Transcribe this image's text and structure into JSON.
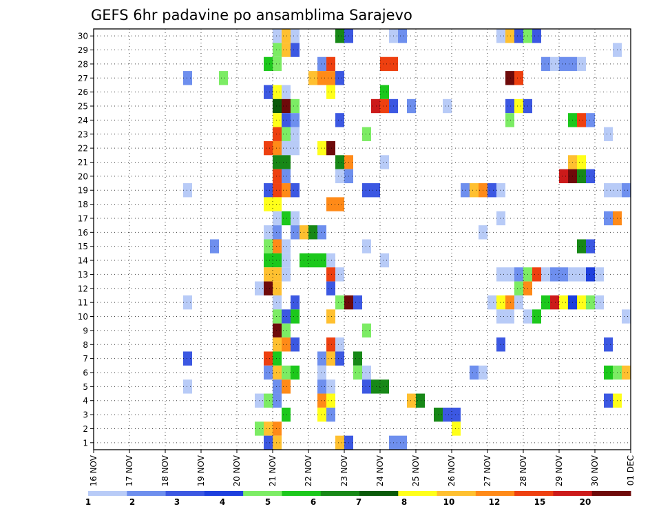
{
  "chart_data": {
    "type": "heatmap",
    "title": "GEFS 6hr padavine po ansamblima Sarajevo",
    "x_tick_labels": [
      "16 NOV",
      "17 NOV",
      "18 NOV",
      "19 NOV",
      "20 NOV",
      "21 NOV",
      "22 NOV",
      "23 NOV",
      "24 NOV",
      "25 NOV",
      "26 NOV",
      "27 NOV",
      "28 NOV",
      "29 NOV",
      "30 NOV",
      "01 DEC"
    ],
    "x_step_hours": 6,
    "y_tick_labels": [
      "1",
      "2",
      "3",
      "4",
      "5",
      "6",
      "7",
      "8",
      "9",
      "10",
      "11",
      "12",
      "13",
      "14",
      "15",
      "16",
      "17",
      "18",
      "19",
      "20",
      "21",
      "22",
      "23",
      "24",
      "25",
      "26",
      "27",
      "28",
      "29",
      "30"
    ],
    "colorbar": {
      "tick_labels": [
        "1",
        "2",
        "3",
        "4",
        "5",
        "6",
        "7",
        "8",
        "10",
        "12",
        "15",
        "20"
      ],
      "colors": [
        "#b8cbf7",
        "#6e8fee",
        "#3c58e2",
        "#1d3fde",
        "#7cec64",
        "#1cc81c",
        "#178817",
        "#0a5a0a",
        "#ffff1a",
        "#ffc030",
        "#ff8a18",
        "#ee4010",
        "#cc1a1a",
        "#6e0a0a"
      ]
    },
    "cells": [
      [
        30,
        [
          [
            20,
            0
          ],
          [
            21,
            9
          ],
          [
            22,
            0
          ],
          [
            27,
            6
          ],
          [
            28,
            2
          ],
          [
            33,
            0
          ],
          [
            34,
            1
          ],
          [
            45,
            0
          ],
          [
            46,
            9
          ],
          [
            47,
            2
          ],
          [
            48,
            4
          ],
          [
            49,
            2
          ]
        ]
      ],
      [
        29,
        [
          [
            20,
            4
          ],
          [
            21,
            9
          ],
          [
            22,
            2
          ],
          [
            58,
            0
          ]
        ]
      ],
      [
        28,
        [
          [
            19,
            5
          ],
          [
            20,
            4
          ],
          [
            25,
            1
          ],
          [
            26,
            11
          ],
          [
            32,
            11
          ],
          [
            33,
            11
          ],
          [
            50,
            1
          ],
          [
            51,
            0
          ],
          [
            52,
            1
          ],
          [
            53,
            1
          ],
          [
            54,
            0
          ]
        ]
      ],
      [
        27,
        [
          [
            10,
            1
          ],
          [
            14,
            4
          ],
          [
            24,
            9
          ],
          [
            25,
            10
          ],
          [
            26,
            10
          ],
          [
            27,
            2
          ],
          [
            46,
            13
          ],
          [
            47,
            11
          ]
        ]
      ],
      [
        26,
        [
          [
            19,
            2
          ],
          [
            20,
            8
          ],
          [
            21,
            0
          ],
          [
            26,
            8
          ],
          [
            32,
            5
          ]
        ]
      ],
      [
        25,
        [
          [
            20,
            7
          ],
          [
            21,
            13
          ],
          [
            22,
            4
          ],
          [
            31,
            12
          ],
          [
            32,
            11
          ],
          [
            33,
            2
          ],
          [
            35,
            1
          ],
          [
            39,
            0
          ],
          [
            46,
            2
          ],
          [
            47,
            8
          ],
          [
            48,
            2
          ]
        ]
      ],
      [
        24,
        [
          [
            20,
            8
          ],
          [
            21,
            2
          ],
          [
            22,
            1
          ],
          [
            27,
            2
          ],
          [
            46,
            4
          ],
          [
            53,
            5
          ],
          [
            54,
            11
          ],
          [
            55,
            1
          ]
        ]
      ],
      [
        23,
        [
          [
            20,
            11
          ],
          [
            21,
            4
          ],
          [
            22,
            0
          ],
          [
            30,
            4
          ],
          [
            57,
            0
          ]
        ]
      ],
      [
        22,
        [
          [
            19,
            11
          ],
          [
            20,
            10
          ],
          [
            21,
            0
          ],
          [
            22,
            0
          ],
          [
            25,
            8
          ],
          [
            26,
            13
          ]
        ]
      ],
      [
        21,
        [
          [
            20,
            6
          ],
          [
            21,
            6
          ],
          [
            27,
            6
          ],
          [
            28,
            10
          ],
          [
            32,
            0
          ],
          [
            53,
            9
          ],
          [
            54,
            8
          ]
        ]
      ],
      [
        20,
        [
          [
            20,
            11
          ],
          [
            21,
            1
          ],
          [
            27,
            0
          ],
          [
            28,
            1
          ],
          [
            52,
            12
          ],
          [
            53,
            13
          ],
          [
            54,
            6
          ],
          [
            55,
            2
          ]
        ]
      ],
      [
        19,
        [
          [
            10,
            0
          ],
          [
            19,
            2
          ],
          [
            20,
            11
          ],
          [
            21,
            10
          ],
          [
            22,
            2
          ],
          [
            30,
            2
          ],
          [
            31,
            2
          ],
          [
            41,
            1
          ],
          [
            42,
            9
          ],
          [
            43,
            10
          ],
          [
            44,
            2
          ],
          [
            45,
            0
          ],
          [
            57,
            0
          ],
          [
            58,
            0
          ],
          [
            59,
            1
          ]
        ]
      ],
      [
        18,
        [
          [
            19,
            8
          ],
          [
            20,
            8
          ],
          [
            26,
            10
          ],
          [
            27,
            10
          ]
        ]
      ],
      [
        17,
        [
          [
            20,
            0
          ],
          [
            21,
            5
          ],
          [
            22,
            0
          ],
          [
            45,
            0
          ],
          [
            57,
            1
          ],
          [
            58,
            10
          ]
        ]
      ],
      [
        16,
        [
          [
            19,
            0
          ],
          [
            20,
            1
          ],
          [
            22,
            1
          ],
          [
            23,
            9
          ],
          [
            24,
            6
          ],
          [
            25,
            1
          ],
          [
            43,
            0
          ]
        ]
      ],
      [
        15,
        [
          [
            13,
            1
          ],
          [
            19,
            4
          ],
          [
            20,
            10
          ],
          [
            21,
            0
          ],
          [
            30,
            0
          ],
          [
            54,
            6
          ],
          [
            55,
            2
          ]
        ]
      ],
      [
        14,
        [
          [
            19,
            5
          ],
          [
            20,
            5
          ],
          [
            21,
            0
          ],
          [
            23,
            5
          ],
          [
            24,
            5
          ],
          [
            25,
            5
          ],
          [
            26,
            0
          ],
          [
            32,
            0
          ]
        ]
      ],
      [
        13,
        [
          [
            19,
            9
          ],
          [
            20,
            9
          ],
          [
            21,
            0
          ],
          [
            26,
            11
          ],
          [
            27,
            0
          ],
          [
            45,
            0
          ],
          [
            46,
            0
          ],
          [
            47,
            1
          ],
          [
            48,
            4
          ],
          [
            49,
            11
          ],
          [
            50,
            0
          ],
          [
            51,
            1
          ],
          [
            52,
            1
          ],
          [
            53,
            0
          ],
          [
            54,
            0
          ],
          [
            55,
            3
          ],
          [
            56,
            0
          ]
        ]
      ],
      [
        12,
        [
          [
            18,
            0
          ],
          [
            19,
            13
          ],
          [
            20,
            9
          ],
          [
            26,
            2
          ],
          [
            47,
            4
          ],
          [
            48,
            10
          ]
        ]
      ],
      [
        11,
        [
          [
            10,
            0
          ],
          [
            20,
            0
          ],
          [
            22,
            2
          ],
          [
            27,
            4
          ],
          [
            28,
            13
          ],
          [
            29,
            2
          ],
          [
            44,
            0
          ],
          [
            45,
            8
          ],
          [
            46,
            10
          ],
          [
            47,
            0
          ],
          [
            50,
            5
          ],
          [
            51,
            12
          ],
          [
            52,
            8
          ],
          [
            53,
            3
          ],
          [
            54,
            8
          ],
          [
            55,
            4
          ],
          [
            56,
            0
          ]
        ]
      ],
      [
        10,
        [
          [
            20,
            4
          ],
          [
            21,
            2
          ],
          [
            22,
            5
          ],
          [
            26,
            9
          ],
          [
            45,
            0
          ],
          [
            46,
            0
          ],
          [
            48,
            0
          ],
          [
            49,
            5
          ],
          [
            59,
            0
          ],
          [
            60,
            1
          ]
        ]
      ],
      [
        9,
        [
          [
            20,
            13
          ],
          [
            21,
            4
          ],
          [
            30,
            4
          ]
        ]
      ],
      [
        8,
        [
          [
            20,
            9
          ],
          [
            21,
            10
          ],
          [
            22,
            2
          ],
          [
            26,
            11
          ],
          [
            27,
            0
          ],
          [
            45,
            2
          ],
          [
            57,
            2
          ]
        ]
      ],
      [
        7,
        [
          [
            10,
            2
          ],
          [
            19,
            11
          ],
          [
            20,
            5
          ],
          [
            25,
            1
          ],
          [
            26,
            9
          ],
          [
            27,
            2
          ],
          [
            29,
            6
          ]
        ]
      ],
      [
        6,
        [
          [
            19,
            1
          ],
          [
            20,
            9
          ],
          [
            21,
            4
          ],
          [
            22,
            5
          ],
          [
            25,
            0
          ],
          [
            29,
            4
          ],
          [
            30,
            0
          ],
          [
            42,
            1
          ],
          [
            43,
            0
          ],
          [
            57,
            5
          ],
          [
            58,
            4
          ],
          [
            59,
            9
          ],
          [
            60,
            2
          ]
        ]
      ],
      [
        5,
        [
          [
            10,
            0
          ],
          [
            20,
            1
          ],
          [
            21,
            10
          ],
          [
            25,
            1
          ],
          [
            26,
            0
          ],
          [
            30,
            2
          ],
          [
            31,
            6
          ],
          [
            32,
            6
          ]
        ]
      ],
      [
        4,
        [
          [
            18,
            0
          ],
          [
            19,
            4
          ],
          [
            20,
            1
          ],
          [
            25,
            10
          ],
          [
            26,
            8
          ],
          [
            35,
            9
          ],
          [
            36,
            6
          ],
          [
            57,
            2
          ],
          [
            58,
            8
          ]
        ]
      ],
      [
        3,
        [
          [
            21,
            5
          ],
          [
            25,
            8
          ],
          [
            26,
            1
          ],
          [
            38,
            6
          ],
          [
            39,
            2
          ],
          [
            40,
            2
          ]
        ]
      ],
      [
        2,
        [
          [
            18,
            4
          ],
          [
            19,
            9
          ],
          [
            20,
            10
          ],
          [
            40,
            8
          ]
        ]
      ],
      [
        1,
        [
          [
            19,
            2
          ],
          [
            20,
            9
          ],
          [
            27,
            9
          ],
          [
            28,
            2
          ],
          [
            33,
            1
          ],
          [
            34,
            1
          ]
        ]
      ]
    ]
  }
}
